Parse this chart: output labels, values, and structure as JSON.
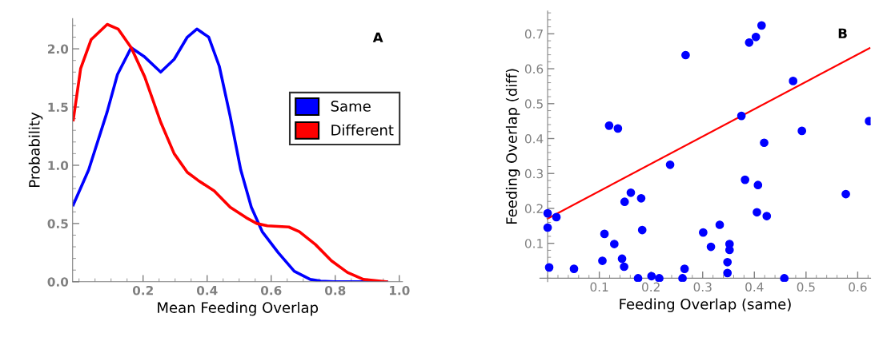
{
  "chart_data": [
    {
      "type": "line",
      "xlabel": "Mean Feeding Overlap",
      "ylabel": "Probability",
      "annotations": [
        "A"
      ],
      "xlim": [
        -0.02,
        1.01
      ],
      "ylim": [
        0,
        2.26
      ],
      "xticks": [
        0.2,
        0.4,
        0.6,
        0.8,
        {
          "value": 1,
          "label": "1.0"
        }
      ],
      "yticks": [
        {
          "value": 0,
          "label": "0.0"
        },
        0.5,
        {
          "value": 1,
          "label": "1.0"
        },
        1.5,
        {
          "value": 2,
          "label": "2.0"
        }
      ],
      "legend": "right",
      "grid": false,
      "series": [
        {
          "name": "Same",
          "color": "#0000ff",
          "x": [
            -0.018,
            0.03,
            0.088,
            0.12,
            0.163,
            0.205,
            0.255,
            0.297,
            0.338,
            0.368,
            0.405,
            0.438,
            0.472,
            0.505,
            0.538,
            0.572,
            0.622,
            0.672,
            0.722,
            0.755,
            0.797,
            0.96
          ],
          "values": [
            0.66,
            0.96,
            1.46,
            1.78,
            2.01,
            1.93,
            1.8,
            1.91,
            2.1,
            2.17,
            2.1,
            1.85,
            1.42,
            0.96,
            0.64,
            0.43,
            0.25,
            0.09,
            0.02,
            0.005,
            0,
            0
          ]
        },
        {
          "name": "Different",
          "color": "#ff0000",
          "x": [
            -0.018,
            0.005,
            0.038,
            0.088,
            0.122,
            0.163,
            0.205,
            0.255,
            0.297,
            0.338,
            0.372,
            0.422,
            0.472,
            0.522,
            0.555,
            0.588,
            0.655,
            0.688,
            0.738,
            0.788,
            0.838,
            0.888,
            0.96
          ],
          "values": [
            1.39,
            1.83,
            2.08,
            2.21,
            2.17,
            2.01,
            1.76,
            1.37,
            1.1,
            0.94,
            0.87,
            0.78,
            0.64,
            0.55,
            0.5,
            0.48,
            0.47,
            0.43,
            0.32,
            0.18,
            0.08,
            0.02,
            0
          ]
        }
      ]
    },
    {
      "type": "scatter",
      "xlabel": "Feeding Overlap (same)",
      "ylabel": "Feeding Overlap (diff)",
      "annotations": [
        "B"
      ],
      "xlim": [
        -0.015,
        0.625
      ],
      "ylim": [
        -0.01,
        0.765
      ],
      "xticks": [
        0.1,
        0.2,
        0.3,
        0.4,
        0.5,
        0.6
      ],
      "yticks": [
        0.1,
        0.2,
        0.3,
        0.4,
        0.5,
        0.6,
        0.7
      ],
      "legend": false,
      "grid": false,
      "series": [
        {
          "color": "#0000ff",
          "marker": "circle",
          "x": [
            0,
            0.017,
            0,
            0.003,
            0.051,
            0.106,
            0.11,
            0.119,
            0.136,
            0.129,
            0.144,
            0.148,
            0.149,
            0.161,
            0.181,
            0.183,
            0.175,
            0.201,
            0.216,
            0.237,
            0.261,
            0.265,
            0.267,
            0.301,
            0.316,
            0.333,
            0.352,
            0.352,
            0.348,
            0.348,
            0.375,
            0.382,
            0.39,
            0.403,
            0.414,
            0.407,
            0.405,
            0.419,
            0.424,
            0.458,
            0.475,
            0.492,
            0.577,
            0.622
          ],
          "values": [
            0.186,
            0.175,
            0.145,
            0.031,
            0.027,
            0.05,
            0.127,
            0.437,
            0.429,
            0.098,
            0.056,
            0.033,
            0.219,
            0.245,
            0.229,
            0.138,
            0,
            0.006,
            0,
            0.325,
            0,
            0.027,
            0.639,
            0.131,
            0.09,
            0.153,
            0.098,
            0.081,
            0.046,
            0.015,
            0.465,
            0.282,
            0.675,
            0.691,
            0.724,
            0.267,
            0.189,
            0.388,
            0.178,
            0,
            0.565,
            0.422,
            0.241,
            0.45
          ]
        },
        {
          "type": "line",
          "color": "#ff0000",
          "x": [
            0,
            0.623
          ],
          "values": [
            0.171,
            0.659
          ]
        }
      ]
    }
  ]
}
